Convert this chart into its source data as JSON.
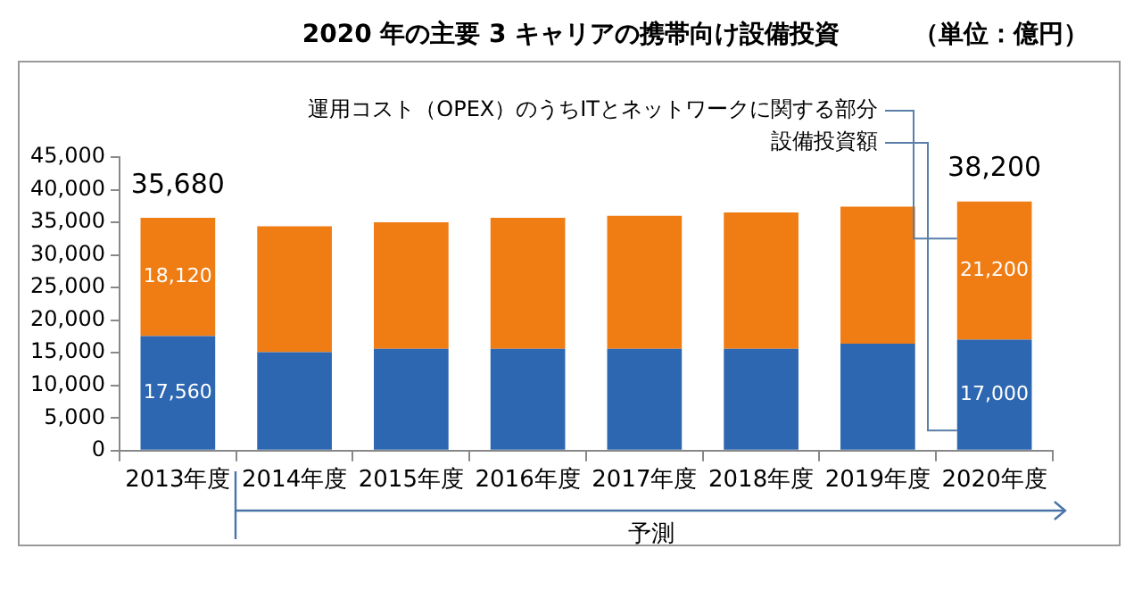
{
  "chart_data": {
    "type": "bar",
    "title": "2020 年の主要 3 キャリアの携帯向け設備投資",
    "subtitle": "（単位：億円）",
    "categories": [
      "2013年度",
      "2014年度",
      "2015年度",
      "2016年度",
      "2017年度",
      "2018年度",
      "2019年度",
      "2020年度"
    ],
    "stacked": true,
    "series": [
      {
        "name": "設備投資額",
        "color": "#2e67b1",
        "values": [
          17560,
          15100,
          15600,
          15600,
          15600,
          15600,
          16400,
          17000
        ],
        "value_labels": [
          "17,560",
          null,
          null,
          null,
          null,
          null,
          null,
          "17,000"
        ]
      },
      {
        "name": "運用コスト（OPEX）のうちITとネットワークに関する部分",
        "color": "#f07c14",
        "values": [
          18120,
          19300,
          19400,
          20100,
          20400,
          20900,
          21000,
          21200
        ],
        "value_labels": [
          "18,120",
          null,
          null,
          null,
          null,
          null,
          null,
          "21,200"
        ]
      }
    ],
    "totals": [
      "35,680",
      null,
      null,
      null,
      null,
      null,
      null,
      "38,200"
    ],
    "ylim": [
      0,
      45000
    ],
    "yticks": [
      0,
      {
        "value": 5000,
        "label": "5,000"
      },
      {
        "value": 10000,
        "label": "10,000"
      },
      {
        "value": 15000,
        "label": "15,000"
      },
      {
        "value": 20000,
        "label": "20,000"
      },
      {
        "value": 25000,
        "label": "25,000"
      },
      {
        "value": 30000,
        "label": "30,000"
      },
      {
        "value": 35000,
        "label": "35,000"
      },
      {
        "value": 40000,
        "label": "40,000"
      },
      {
        "value": 45000,
        "label": "45,000"
      }
    ],
    "grid": false,
    "legend": false,
    "annotations": [
      "予測"
    ]
  }
}
